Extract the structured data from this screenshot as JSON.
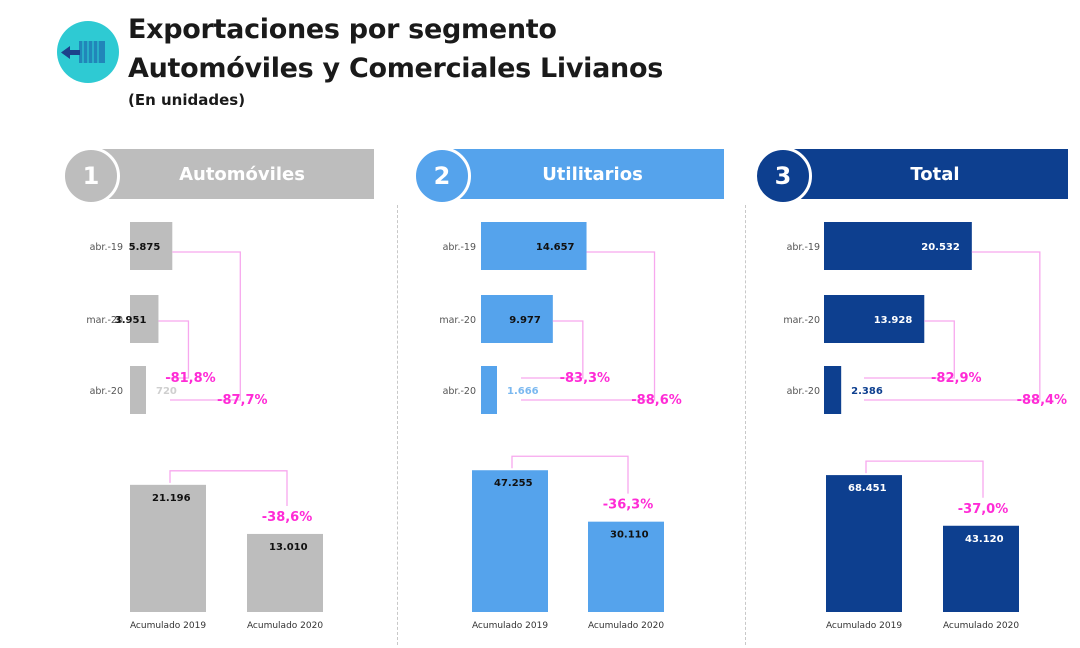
{
  "header": {
    "title_line1": "Exportaciones por segmento",
    "title_line2": "Automóviles y Comerciales Livianos",
    "subtitle": "(En unidades)",
    "logo_icon": "truck-icon"
  },
  "panels": [
    {
      "number": "1",
      "label": "Automóviles",
      "circle_color": "#bdbdbd",
      "band_color": "#bdbdbd"
    },
    {
      "number": "2",
      "label": "Utilitarios",
      "circle_color": "#55a3ec",
      "band_color": "#55a3ec"
    },
    {
      "number": "3",
      "label": "Total",
      "circle_color": "#0d3f8f",
      "band_color": "#0d3f8f"
    }
  ],
  "chart_data": [
    {
      "type": "bar",
      "segment": "Automóviles",
      "color": "#bdbdbd",
      "monthly": {
        "categories": [
          "abr.-19",
          "mar.-20",
          "abr.-20"
        ],
        "values": [
          5875,
          3951,
          720
        ],
        "value_labels": [
          "5.875",
          "3.951",
          "720"
        ],
        "changes": [
          {
            "from": "mar.-20",
            "to": "abr.-20",
            "label": "-81,8%"
          },
          {
            "from": "abr.-19",
            "to": "abr.-20",
            "label": "-87,7%"
          }
        ]
      },
      "cumulative": {
        "categories": [
          "Acumulado 2019",
          "Acumulado 2020"
        ],
        "values": [
          21196,
          13010
        ],
        "value_labels": [
          "21.196",
          "13.010"
        ],
        "change": "-38,6%"
      }
    },
    {
      "type": "bar",
      "segment": "Utilitarios",
      "color": "#55a3ec",
      "monthly": {
        "categories": [
          "abr.-19",
          "mar.-20",
          "abr.-20"
        ],
        "values": [
          14657,
          9977,
          1666
        ],
        "value_labels": [
          "14.657",
          "9.977",
          "1.666"
        ],
        "changes": [
          {
            "from": "mar.-20",
            "to": "abr.-20",
            "label": "-83,3%"
          },
          {
            "from": "abr.-19",
            "to": "abr.-20",
            "label": "-88,6%"
          }
        ]
      },
      "cumulative": {
        "categories": [
          "Acumulado 2019",
          "Acumulado 2020"
        ],
        "values": [
          47255,
          30110
        ],
        "value_labels": [
          "47.255",
          "30.110"
        ],
        "change": "-36,3%"
      }
    },
    {
      "type": "bar",
      "segment": "Total",
      "color": "#0d3f8f",
      "monthly": {
        "categories": [
          "abr.-19",
          "mar.-20",
          "abr.-20"
        ],
        "values": [
          20532,
          13928,
          2386
        ],
        "value_labels": [
          "20.532",
          "13.928",
          "2.386"
        ],
        "changes": [
          {
            "from": "mar.-20",
            "to": "abr.-20",
            "label": "-82,9%"
          },
          {
            "from": "abr.-19",
            "to": "abr.-20",
            "label": "-88,4%"
          }
        ]
      },
      "cumulative": {
        "categories": [
          "Acumulado 2019",
          "Acumulado 2020"
        ],
        "values": [
          68451,
          43120
        ],
        "value_labels": [
          "68.451",
          "43.120"
        ],
        "change": "-37,0%"
      }
    }
  ],
  "colors": {
    "annotation": "#ff2bd6",
    "connector": "#f7a8ee"
  }
}
